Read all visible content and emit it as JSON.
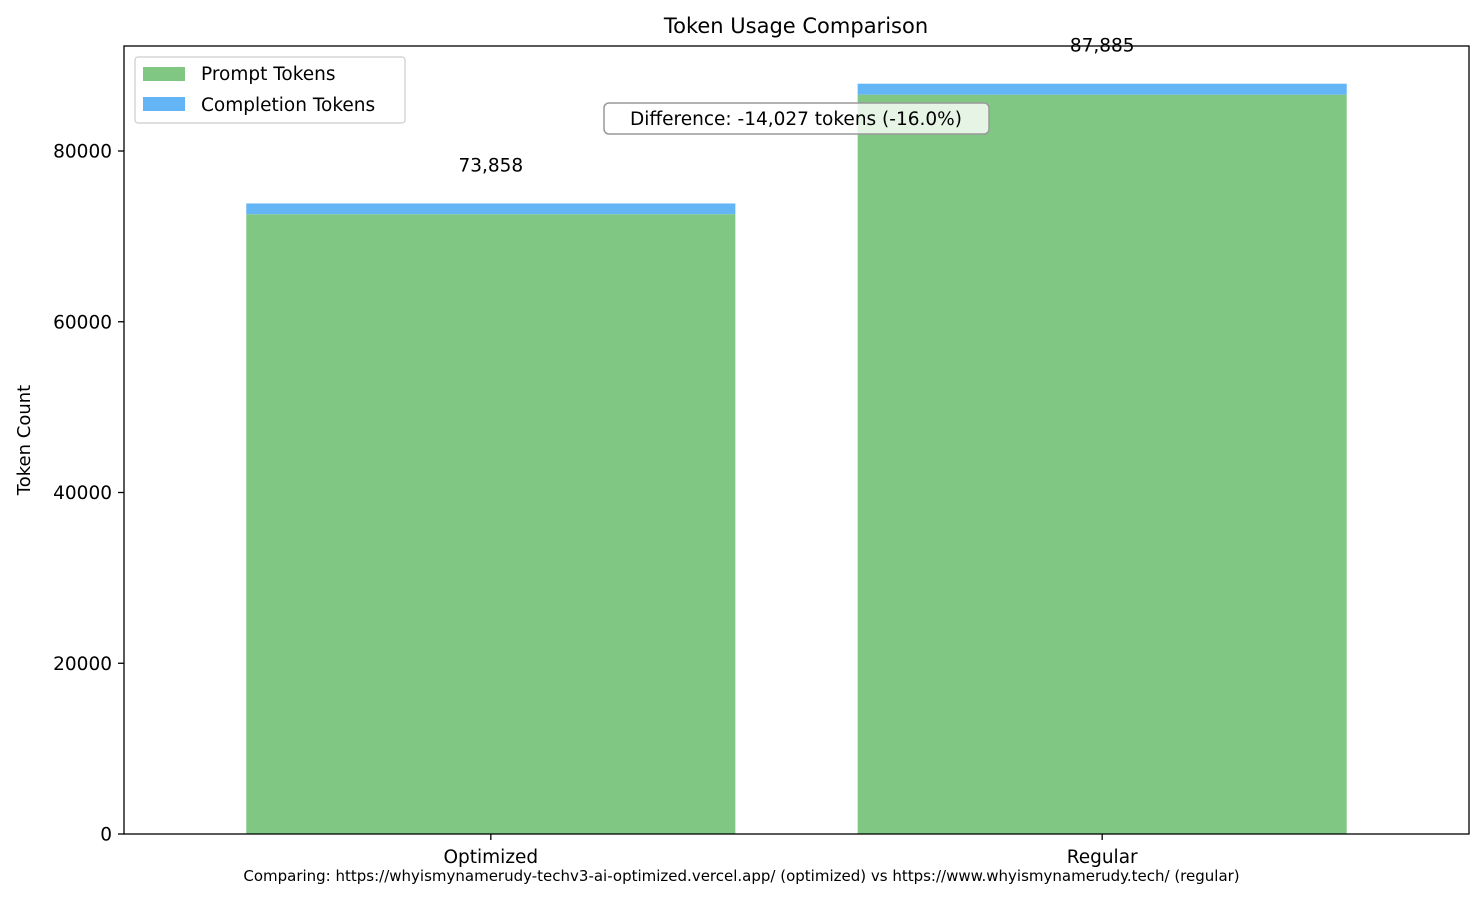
{
  "chart_data": {
    "type": "bar",
    "stacked": true,
    "title": "Token Usage Comparison",
    "xlabel": "",
    "ylabel": "Token Count",
    "categories": [
      "Optimized",
      "Regular"
    ],
    "series": [
      {
        "name": "Prompt Tokens",
        "values": [
          72600,
          86600
        ],
        "color": "#81c784"
      },
      {
        "name": "Completion Tokens",
        "values": [
          1258,
          1285
        ],
        "color": "#64b5f6"
      }
    ],
    "totals": [
      73858,
      87885
    ],
    "total_labels": [
      "73,858",
      "87,885"
    ],
    "ylim": [
      0,
      92300
    ],
    "yticks": [
      0,
      20000,
      40000,
      60000,
      80000
    ],
    "ytick_labels": [
      "0",
      "20000",
      "40000",
      "60000",
      "80000"
    ],
    "grid": false,
    "legend_position": "upper-left",
    "annotation": "Difference: -14,027 tokens (-16.0%)"
  },
  "footer_text": "Comparing: https://whyismynamerudy-techv3-ai-optimized.vercel.app/ (optimized) vs https://www.whyismynamerudy.tech/ (regular)"
}
